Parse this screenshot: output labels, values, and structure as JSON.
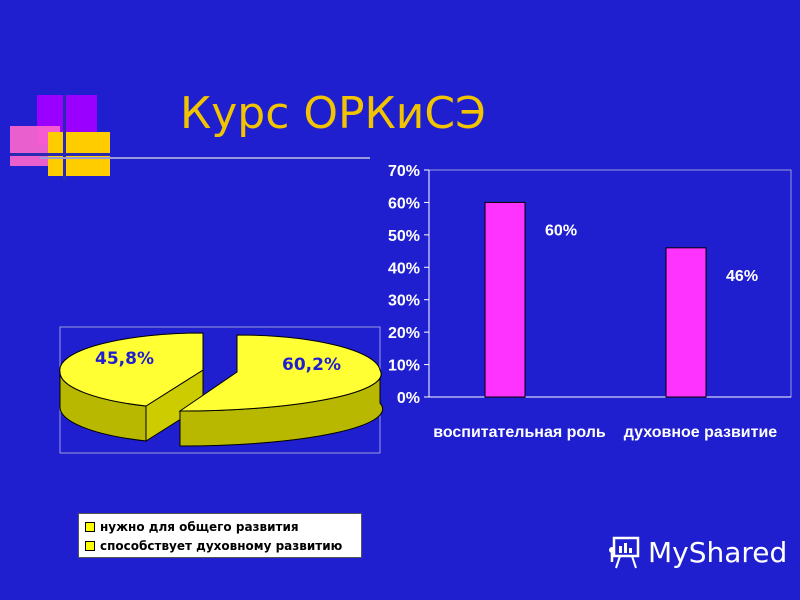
{
  "slide": {
    "title": "Курс ОРКиСЭ"
  },
  "pie_chart": {
    "type": "pie",
    "style": "3d-exploded",
    "labels": [
      "45,8%",
      "60,2%"
    ],
    "values": [
      45.8,
      60.2
    ],
    "legend": [
      "нужно для общего развития",
      "способствует духовному развитию"
    ],
    "legend_position": "bottom",
    "colors": [
      "#ffff33",
      "#c8c800"
    ]
  },
  "chart_data": {
    "type": "bar",
    "categories": [
      "воспитательная роль",
      "духовное развитие"
    ],
    "values": [
      60,
      46
    ],
    "data_labels": [
      "60%",
      "46%"
    ],
    "ylim": [
      0,
      70
    ],
    "yticks": [
      "0%",
      "10%",
      "20%",
      "30%",
      "40%",
      "50%",
      "60%",
      "70%"
    ],
    "grid": false,
    "bar_color": "#ff33ff"
  },
  "watermark": {
    "text": "MyShared",
    "icon": "presentation-board-icon"
  }
}
